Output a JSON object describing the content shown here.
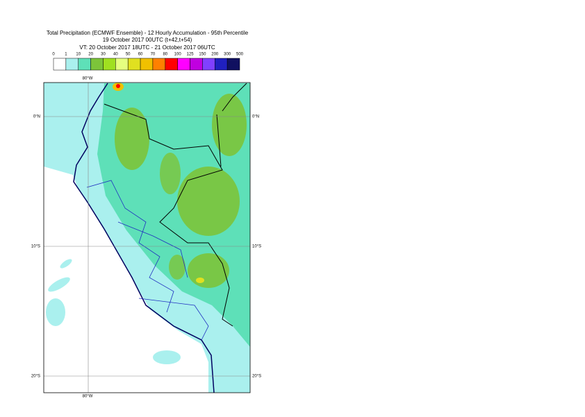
{
  "header": {
    "title": "Total Precipitation (ECMWF Ensemble) - 12 Hourly Accumulation - 95th Percentile",
    "subtitle": "19 October 2017 00UTC (t+42,t+54)",
    "valid_time": "VT: 20 October 2017 18UTC - 21 October 2017 06UTC"
  },
  "legend": {
    "ticks": [
      "0",
      "1",
      "10",
      "20",
      "30",
      "40",
      "50",
      "60",
      "70",
      "80",
      "100",
      "125",
      "150",
      "200",
      "300",
      "500"
    ],
    "colors": [
      "#ffffff",
      "#aaf0ee",
      "#5ee0b8",
      "#7cc43a",
      "#a0e020",
      "#e6ff80",
      "#e0e020",
      "#f0c000",
      "#ff8000",
      "#ff0000",
      "#ff00ff",
      "#c000e0",
      "#8040ff",
      "#2020c0",
      "#101060"
    ]
  },
  "map": {
    "lon_label_top": "80°W",
    "lon_label_bottom": "80°W",
    "lat_labels_left": [
      "0°N",
      "10°S",
      "20°S"
    ],
    "lat_labels_right": [
      "0°N",
      "10°S",
      "20°S"
    ]
  }
}
